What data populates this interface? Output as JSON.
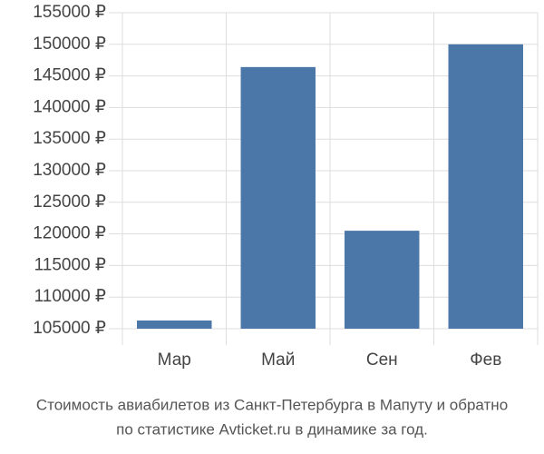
{
  "chart_data": {
    "type": "bar",
    "title": "Стоимость авиабилетов из Санкт-Петербурга в Мапуту и обратно",
    "subtitle": "по статистике Avticket.ru в динамике за год.",
    "categories": [
      "Мар",
      "Май",
      "Сен",
      "Фев"
    ],
    "values": [
      106300,
      146400,
      120500,
      150000
    ],
    "color": "#4a76a8",
    "ylim": [
      105000,
      155000
    ],
    "yticks": [
      {
        "value": 105000,
        "label": "105000 ₽"
      },
      {
        "value": 110000,
        "label": "110000 ₽"
      },
      {
        "value": 115000,
        "label": "115000 ₽"
      },
      {
        "value": 120000,
        "label": "120000 ₽"
      },
      {
        "value": 125000,
        "label": "125000 ₽"
      },
      {
        "value": 130000,
        "label": "130000 ₽"
      },
      {
        "value": 135000,
        "label": "135000 ₽"
      },
      {
        "value": 140000,
        "label": "140000 ₽"
      },
      {
        "value": 145000,
        "label": "145000 ₽"
      },
      {
        "value": 150000,
        "label": "150000 ₽"
      },
      {
        "value": 155000,
        "label": "155000 ₽"
      }
    ],
    "grid": true
  }
}
